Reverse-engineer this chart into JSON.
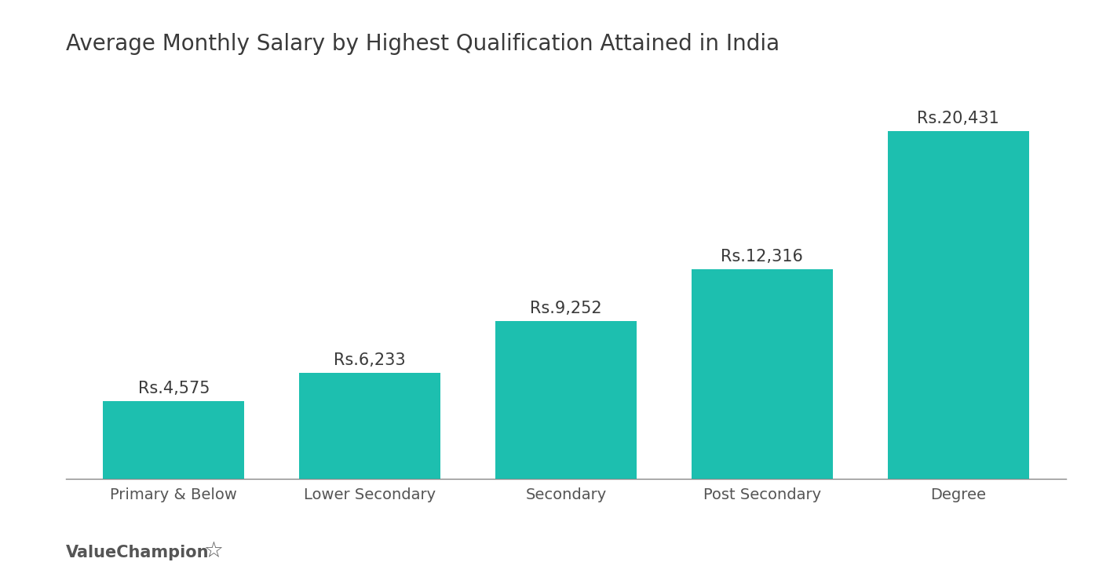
{
  "title": "Average Monthly Salary by Highest Qualification Attained in India",
  "categories": [
    "Primary & Below",
    "Lower Secondary",
    "Secondary",
    "Post Secondary",
    "Degree"
  ],
  "values": [
    4575,
    6233,
    9252,
    12316,
    20431
  ],
  "labels": [
    "Rs.4,575",
    "Rs.6,233",
    "Rs.9,252",
    "Rs.12,316",
    "Rs.20,431"
  ],
  "bar_color": "#1dbfaf",
  "background_color": "#ffffff",
  "title_color": "#3a3a3a",
  "label_color": "#3a3a3a",
  "tick_color": "#555555",
  "watermark_text": "ValueChampion",
  "title_fontsize": 20,
  "label_fontsize": 15,
  "tick_fontsize": 14,
  "watermark_fontsize": 15,
  "ylim": [
    0,
    24000
  ],
  "bar_width": 0.72
}
